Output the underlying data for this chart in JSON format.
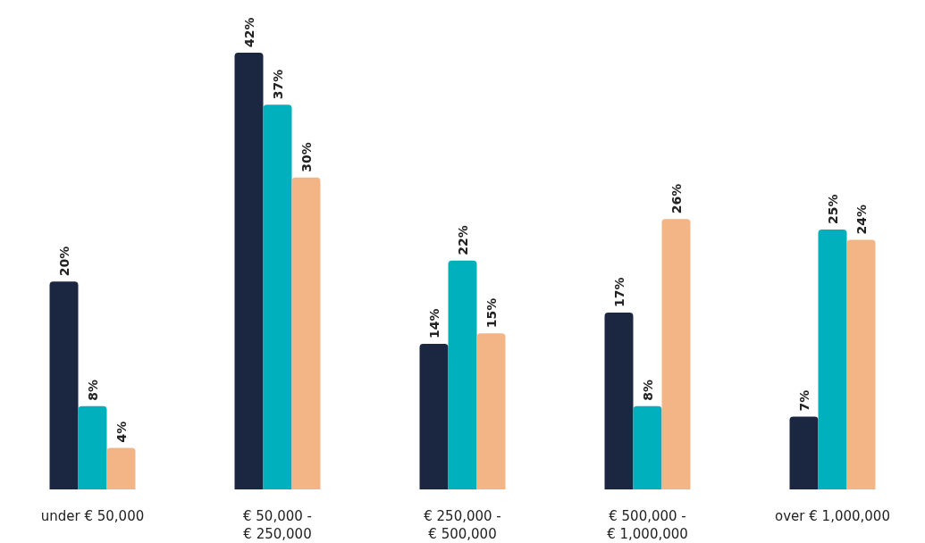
{
  "chart_data": {
    "type": "bar",
    "categories": [
      "under € 50,000",
      "€ 50,000 - € 250,000",
      "€ 250,000 - € 500,000",
      "€ 500,000 - € 1,000,000",
      "over € 1,000,000"
    ],
    "series": [
      {
        "color": "#1b2640",
        "values": [
          20,
          42,
          14,
          17,
          7
        ],
        "value_labels": [
          "20%",
          "42%",
          "14%",
          "17%",
          "7%"
        ]
      },
      {
        "color": "#00b0bc",
        "values": [
          8,
          37,
          22,
          8,
          25
        ],
        "value_labels": [
          "8%",
          "37%",
          "22%",
          "8%",
          "25%"
        ]
      },
      {
        "color": "#f4b586",
        "values": [
          4,
          30,
          15,
          26,
          24
        ],
        "value_labels": [
          "4%",
          "30%",
          "15%",
          "26%",
          "24%"
        ]
      }
    ]
  }
}
